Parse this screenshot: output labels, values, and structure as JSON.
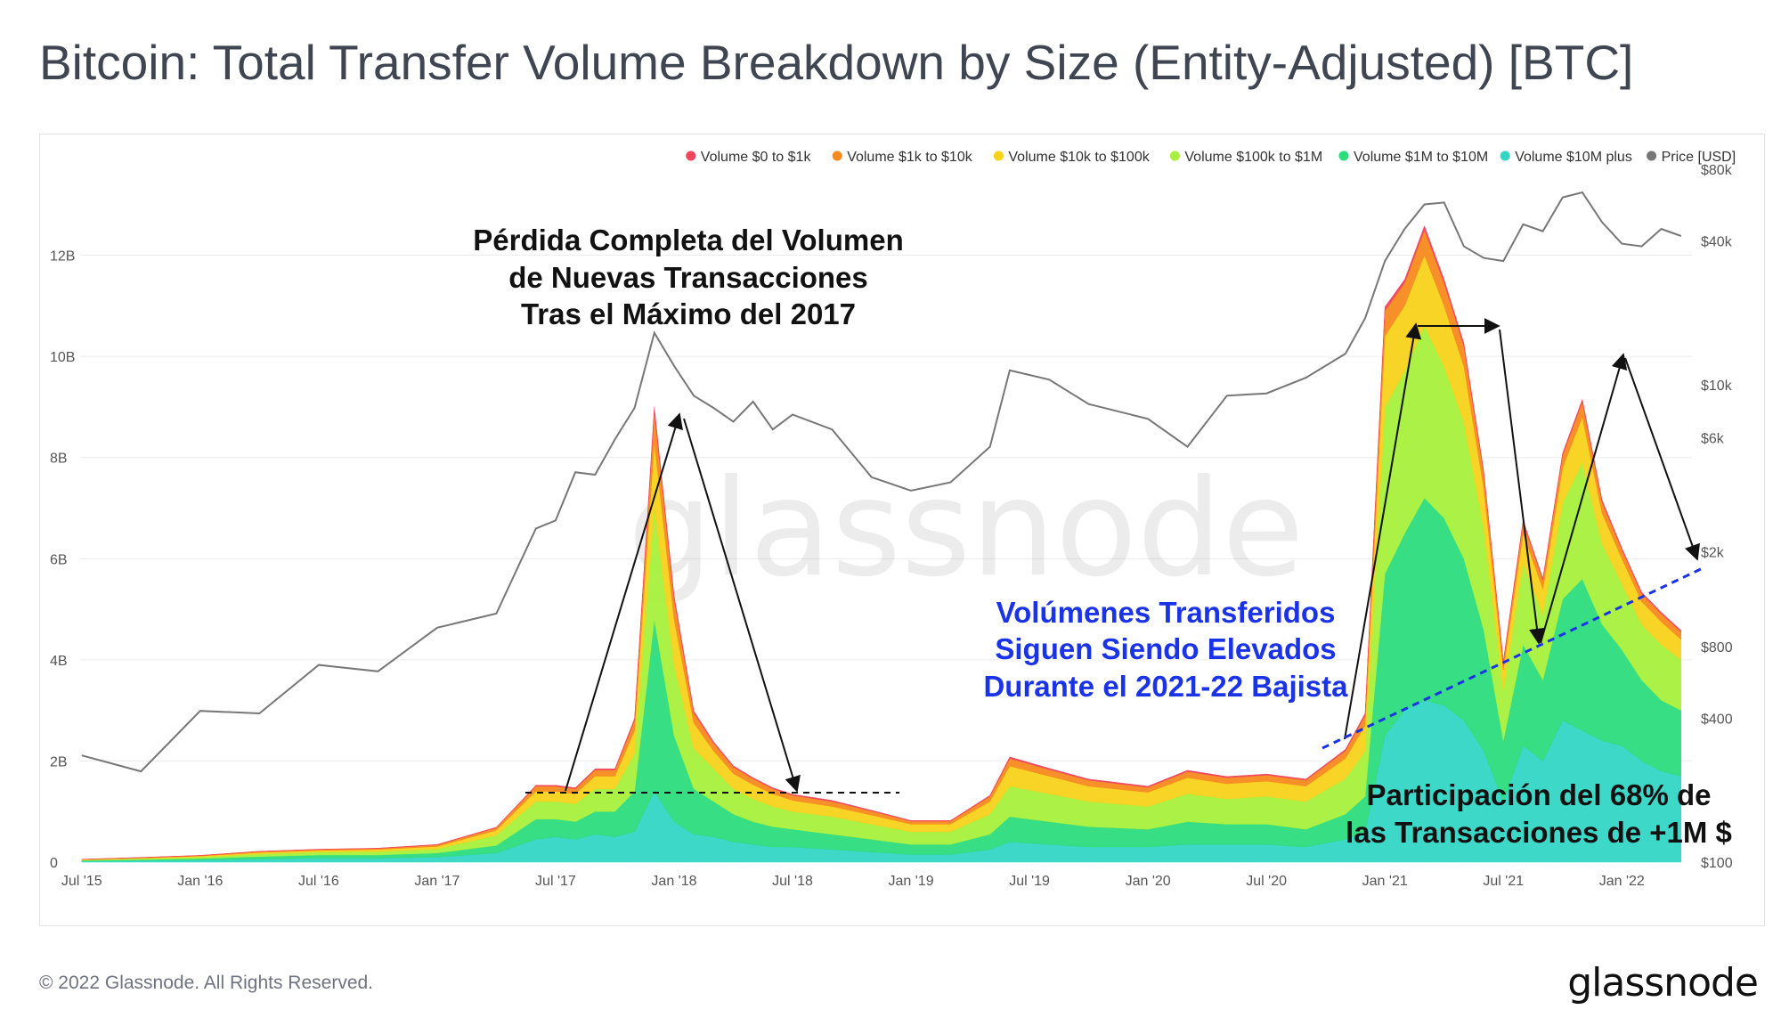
{
  "title": "Bitcoin: Total Transfer Volume Breakdown by Size (Entity-Adjusted) [BTC]",
  "footer": "© 2022 Glassnode. All Rights Reserved.",
  "brand": "glassnode",
  "watermark": "glassnode",
  "legend": [
    {
      "label": "Volume $0 to $1k",
      "color": "#f0455d"
    },
    {
      "label": "Volume $1k to $10k",
      "color": "#f78a1e"
    },
    {
      "label": "Volume $10k to $100k",
      "color": "#f7d21a"
    },
    {
      "label": "Volume $100k to $1M",
      "color": "#a8f03c"
    },
    {
      "label": "Volume $1M to $10M",
      "color": "#2ddc7c"
    },
    {
      "label": "Volume $10M plus",
      "color": "#33d6c4"
    },
    {
      "label": "Price [USD]",
      "color": "#777777"
    }
  ],
  "annotations": {
    "loss": [
      "Pérdida Completa del Volumen",
      "de Nuevas Transacciones",
      "Tras el Máximo del 2017"
    ],
    "elevated": [
      "Volúmenes Transferidos",
      "Siguen Siendo Elevados",
      "Durante el 2021-22 Bajista"
    ],
    "share": [
      "Participación del 68% de",
      "las Transacciones de +1M $"
    ]
  },
  "chart_data": {
    "type": "area",
    "stacked": true,
    "title": "Bitcoin: Total Transfer Volume Breakdown by Size (Entity-Adjusted) [BTC]",
    "x_ticks": [
      "Jul '15",
      "Jan '16",
      "Jul '16",
      "Jan '17",
      "Jul '17",
      "Jan '18",
      "Jul '18",
      "Jan '19",
      "Jul '19",
      "Jan '20",
      "Jul '20",
      "Jan '21",
      "Jul '21",
      "Jan '22"
    ],
    "y_left_ticks": [
      "0",
      "2B",
      "4B",
      "6B",
      "8B",
      "10B",
      "12B"
    ],
    "y_left_lim": [
      0,
      13700000000
    ],
    "y_right_ticks": [
      "$100",
      "$400",
      "$800",
      "$2k",
      "$6k",
      "$10k",
      "$40k",
      "$80k"
    ],
    "y_right_scale": "log",
    "y_right_lim": [
      100,
      80000
    ],
    "legend_position": "top-right",
    "grid": true,
    "x": [
      "2015-07",
      "2015-10",
      "2016-01",
      "2016-04",
      "2016-07",
      "2016-10",
      "2017-01",
      "2017-04",
      "2017-06",
      "2017-07",
      "2017-08",
      "2017-09",
      "2017-10",
      "2017-11",
      "2017-12",
      "2018-01",
      "2018-02",
      "2018-03",
      "2018-04",
      "2018-05",
      "2018-06",
      "2018-07",
      "2018-09",
      "2018-11",
      "2019-01",
      "2019-03",
      "2019-05",
      "2019-06",
      "2019-08",
      "2019-10",
      "2020-01",
      "2020-03",
      "2020-05",
      "2020-07",
      "2020-09",
      "2020-11",
      "2020-12",
      "2021-01",
      "2021-02",
      "2021-03",
      "2021-04",
      "2021-05",
      "2021-06",
      "2021-07",
      "2021-08",
      "2021-09",
      "2021-10",
      "2021-11",
      "2021-12",
      "2022-01",
      "2022-02",
      "2022-03",
      "2022-04"
    ],
    "series": [
      {
        "name": "Volume $10M plus",
        "values": [
          0.02,
          0.03,
          0.04,
          0.06,
          0.08,
          0.08,
          0.1,
          0.18,
          0.45,
          0.5,
          0.45,
          0.55,
          0.5,
          0.6,
          1.4,
          0.8,
          0.55,
          0.5,
          0.4,
          0.35,
          0.3,
          0.3,
          0.25,
          0.2,
          0.15,
          0.15,
          0.25,
          0.4,
          0.35,
          0.3,
          0.3,
          0.35,
          0.35,
          0.35,
          0.3,
          0.45,
          0.6,
          2.5,
          3.0,
          3.2,
          3.1,
          2.8,
          2.2,
          1.2,
          2.3,
          2.0,
          2.8,
          2.6,
          2.4,
          2.3,
          2.0,
          1.8,
          1.7
        ]
      },
      {
        "name": "Volume $1M to $10M",
        "values": [
          0.01,
          0.02,
          0.03,
          0.05,
          0.06,
          0.06,
          0.08,
          0.15,
          0.4,
          0.35,
          0.35,
          0.45,
          0.5,
          0.8,
          3.4,
          1.7,
          0.9,
          0.7,
          0.55,
          0.45,
          0.4,
          0.35,
          0.3,
          0.25,
          0.2,
          0.2,
          0.3,
          0.5,
          0.45,
          0.4,
          0.35,
          0.45,
          0.4,
          0.4,
          0.35,
          0.5,
          0.7,
          3.2,
          3.5,
          4.0,
          3.7,
          3.2,
          2.4,
          1.2,
          2.0,
          1.6,
          2.4,
          3.0,
          2.3,
          1.9,
          1.6,
          1.4,
          1.3
        ]
      },
      {
        "name": "Volume $100k to $1M",
        "values": [
          0.01,
          0.02,
          0.03,
          0.05,
          0.06,
          0.07,
          0.08,
          0.2,
          0.35,
          0.35,
          0.35,
          0.45,
          0.45,
          0.75,
          2.2,
          1.4,
          0.8,
          0.65,
          0.5,
          0.45,
          0.4,
          0.35,
          0.35,
          0.3,
          0.25,
          0.25,
          0.4,
          0.6,
          0.55,
          0.5,
          0.45,
          0.55,
          0.5,
          0.55,
          0.55,
          0.7,
          0.9,
          3.3,
          3.2,
          3.4,
          3.0,
          2.7,
          2.0,
          1.0,
          1.6,
          1.3,
          1.9,
          2.3,
          1.6,
          1.3,
          1.1,
          1.1,
          1.0
        ]
      },
      {
        "name": "Volume $10k to $100k",
        "values": [
          0.01,
          0.01,
          0.02,
          0.03,
          0.03,
          0.04,
          0.05,
          0.1,
          0.2,
          0.2,
          0.2,
          0.25,
          0.25,
          0.45,
          1.3,
          0.9,
          0.5,
          0.35,
          0.3,
          0.28,
          0.25,
          0.22,
          0.2,
          0.18,
          0.15,
          0.15,
          0.25,
          0.4,
          0.35,
          0.3,
          0.28,
          0.32,
          0.3,
          0.3,
          0.3,
          0.4,
          0.5,
          1.4,
          1.3,
          1.4,
          1.2,
          1.1,
          0.8,
          0.4,
          0.6,
          0.5,
          0.7,
          0.9,
          0.6,
          0.5,
          0.45,
          0.45,
          0.4
        ]
      },
      {
        "name": "Volume $1k to $10k",
        "values": [
          0.005,
          0.01,
          0.01,
          0.02,
          0.02,
          0.02,
          0.03,
          0.05,
          0.1,
          0.1,
          0.1,
          0.12,
          0.12,
          0.2,
          0.6,
          0.4,
          0.2,
          0.15,
          0.13,
          0.12,
          0.1,
          0.1,
          0.1,
          0.08,
          0.06,
          0.06,
          0.1,
          0.15,
          0.13,
          0.12,
          0.1,
          0.12,
          0.12,
          0.12,
          0.12,
          0.15,
          0.2,
          0.5,
          0.45,
          0.5,
          0.45,
          0.4,
          0.3,
          0.15,
          0.22,
          0.18,
          0.25,
          0.3,
          0.22,
          0.18,
          0.16,
          0.16,
          0.15
        ]
      },
      {
        "name": "Volume $0 to $1k",
        "values": [
          0.002,
          0.003,
          0.004,
          0.005,
          0.006,
          0.006,
          0.008,
          0.01,
          0.02,
          0.02,
          0.02,
          0.025,
          0.025,
          0.04,
          0.1,
          0.07,
          0.04,
          0.03,
          0.025,
          0.02,
          0.02,
          0.02,
          0.02,
          0.015,
          0.012,
          0.012,
          0.02,
          0.03,
          0.025,
          0.022,
          0.02,
          0.025,
          0.022,
          0.022,
          0.022,
          0.03,
          0.04,
          0.08,
          0.07,
          0.08,
          0.07,
          0.06,
          0.05,
          0.03,
          0.04,
          0.03,
          0.04,
          0.05,
          0.04,
          0.03,
          0.03,
          0.03,
          0.03
        ]
      },
      {
        "name": "Price [USD]",
        "axis": "right",
        "values": [
          280,
          240,
          430,
          420,
          670,
          630,
          960,
          1100,
          2500,
          2700,
          4300,
          4200,
          5900,
          8000,
          16500,
          12000,
          9000,
          8000,
          7000,
          8500,
          6500,
          7500,
          6500,
          4100,
          3600,
          3900,
          5500,
          11500,
          10500,
          8300,
          7200,
          5500,
          9000,
          9200,
          10700,
          13500,
          19000,
          33000,
          45000,
          57000,
          58000,
          38000,
          34000,
          33000,
          47000,
          44000,
          61000,
          64000,
          48000,
          39000,
          38000,
          45000,
          42000
        ]
      }
    ]
  }
}
